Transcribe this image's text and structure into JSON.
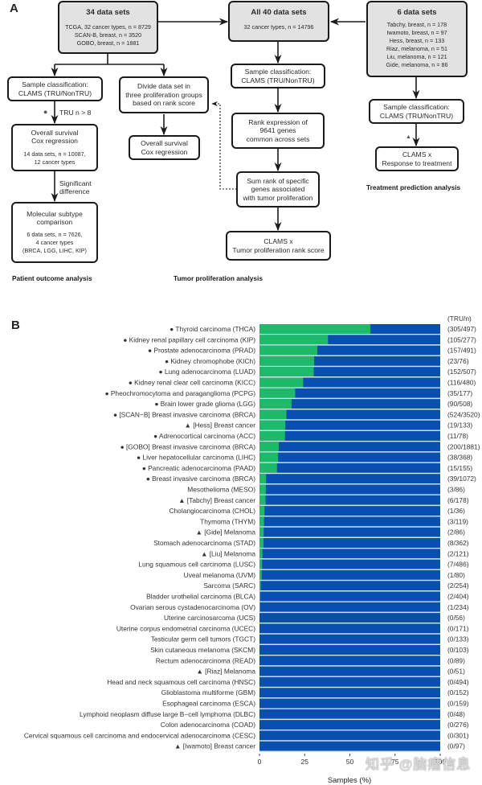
{
  "panel_a": {
    "label": "A",
    "boxes": {
      "ds34": {
        "head": "34 data sets",
        "lines": [
          "TCGA, 32 cancer types, n = 8729",
          "SCAN-B, breast, n = 3520",
          "GOBO, breast, n = 1881"
        ]
      },
      "all40": {
        "head": "All 40 data sets",
        "lines": [
          "32 cancer types, n = 14796"
        ]
      },
      "ds6": {
        "head": "6 data sets",
        "lines": [
          "Tabchy, breast, n = 178",
          "Iwamoto, breast, n = 97",
          "Hess, breast, n = 133",
          "Riaz, melanoma, n = 51",
          "Liu, melanoma, n = 121",
          "Gide, melanoma, n = 86"
        ]
      },
      "classify_left": [
        "Sample classification:",
        "CLAMS (TRU/NonTRU)"
      ],
      "divide": [
        "Divide data set in",
        "three proliferation groups",
        "based on rank score"
      ],
      "survival_left": {
        "lines": [
          "Overall survival",
          "Cox regression"
        ],
        "sub": [
          "14 data sets, n = 10087,",
          "12 cancer types"
        ]
      },
      "survival_mid": [
        "Overall survival",
        "Cox regression"
      ],
      "subtype": {
        "lines": [
          "Molecular subtype",
          "comparison"
        ],
        "sub": [
          "6 data sets, n = 7626,",
          "4 cancer types",
          "(BRCA, LGG, LIHC, KIP)"
        ]
      },
      "classify_mid": [
        "Sample classification:",
        "CLAMS (TRU/NonTRU)"
      ],
      "rank": [
        "Rank expression of",
        "9641 genes",
        "common across sets"
      ],
      "sumrank": [
        "Sum rank of specific",
        "genes associated",
        "with tumor proliferation"
      ],
      "clams_prolif": [
        "CLAMS x",
        "Tumor proliferation rank score"
      ],
      "classify_right": [
        "Sample classification:",
        "CLAMS (TRU/NonTRU)"
      ],
      "clams_response": [
        "CLAMS x",
        "Response to treatment"
      ]
    },
    "annotations": {
      "tru_filter": "TRU n > 8",
      "significant": [
        "Significant",
        "difference"
      ]
    },
    "section_titles": {
      "patient": "Patient outcome analysis",
      "tumor": "Tumor proliferation analysis",
      "treatment": "Treatment prediction analysis"
    },
    "symbols": {
      "circle": "●",
      "triangle": "▲"
    }
  },
  "colors": {
    "tru": "#1dba6a",
    "nontru": "#0a4fb0",
    "separator": "#cfe6f2",
    "box_fill": "#e2e2e2",
    "border": "#1a1a1a"
  },
  "watermark": "知乎 @脑瘤信息",
  "chart_data": {
    "type": "bar",
    "stacked": true,
    "orientation": "horizontal",
    "panel_label": "B",
    "xlabel": "Samples (%)",
    "xlim": [
      0,
      100
    ],
    "xticks": [
      0,
      25,
      50,
      75,
      100
    ],
    "xtick_labels": [
      "0",
      "25",
      "50",
      "75",
      "100"
    ],
    "right_header": "(TRU/n)",
    "legend": "none",
    "series_names": [
      "TRU",
      "NonTRU"
    ],
    "categories": [
      {
        "label": "Thyroid carcinoma (THCA)",
        "marker": "circle",
        "tru": 305,
        "n": 497
      },
      {
        "label": "Kidney renal papillary cell carcinoma (KIP)",
        "marker": "circle",
        "tru": 105,
        "n": 277
      },
      {
        "label": "Prostate adenocarcinoma (PRAD)",
        "marker": "circle",
        "tru": 157,
        "n": 491
      },
      {
        "label": "Kidney chromophobe (KICh)",
        "marker": "circle",
        "tru": 23,
        "n": 76
      },
      {
        "label": "Lung adenocarcinoma (LUAD)",
        "marker": "circle",
        "tru": 152,
        "n": 507
      },
      {
        "label": "Kidney renal clear cell carcinoma (KICC)",
        "marker": "circle",
        "tru": 116,
        "n": 480
      },
      {
        "label": "Pheochromocytoma and paraganglioma (PCPG)",
        "marker": "circle",
        "tru": 35,
        "n": 177
      },
      {
        "label": "Brain lower grade glioma (LGG)",
        "marker": "circle",
        "tru": 90,
        "n": 508
      },
      {
        "label": "[SCAN−B] Breast invasive carcinoma (BRCA)",
        "marker": "circle",
        "tru": 524,
        "n": 3520
      },
      {
        "label": "[Hess] Breast cancer",
        "marker": "triangle",
        "tru": 19,
        "n": 133
      },
      {
        "label": "Adrenocortical carcinoma (ACC)",
        "marker": "circle",
        "tru": 11,
        "n": 78
      },
      {
        "label": "[GOBO] Breast invasive carcinoma (BRCA)",
        "marker": "circle",
        "tru": 200,
        "n": 1881
      },
      {
        "label": "Liver hepatocellular carcinoma (LIHC)",
        "marker": "circle",
        "tru": 38,
        "n": 368
      },
      {
        "label": "Pancreatic adenocarcinoma (PAAD)",
        "marker": "circle",
        "tru": 15,
        "n": 155
      },
      {
        "label": "Breast invasive carcinoma (BRCA)",
        "marker": "circle",
        "tru": 39,
        "n": 1072
      },
      {
        "label": "Mesothelioma (MESO)",
        "marker": "",
        "tru": 3,
        "n": 86
      },
      {
        "label": "[Tabchy] Breast cancer",
        "marker": "triangle",
        "tru": 6,
        "n": 178
      },
      {
        "label": "Cholangiocarcinoma (CHOL)",
        "marker": "",
        "tru": 1,
        "n": 36
      },
      {
        "label": "Thymoma (THYM)",
        "marker": "",
        "tru": 3,
        "n": 119
      },
      {
        "label": "[Gide] Melanoma",
        "marker": "triangle",
        "tru": 2,
        "n": 86
      },
      {
        "label": "Stomach adenocarcinoma (STAD)",
        "marker": "",
        "tru": 8,
        "n": 362
      },
      {
        "label": "[Liu] Melanoma",
        "marker": "triangle",
        "tru": 2,
        "n": 121
      },
      {
        "label": "Lung squamous cell carcinoma (LUSC)",
        "marker": "",
        "tru": 7,
        "n": 486
      },
      {
        "label": "Uveal melanoma (UVM)",
        "marker": "",
        "tru": 1,
        "n": 80
      },
      {
        "label": "Sarcoma (SARC)",
        "marker": "",
        "tru": 2,
        "n": 254
      },
      {
        "label": "Bladder urothelial carcinoma (BLCA)",
        "marker": "",
        "tru": 2,
        "n": 404
      },
      {
        "label": "Ovarian serous cystadenocarcinoma (OV)",
        "marker": "",
        "tru": 1,
        "n": 234
      },
      {
        "label": "Uterine carcinosarcoma (UCS)",
        "marker": "",
        "tru": 0,
        "n": 56
      },
      {
        "label": "Uterine corpus endometrial carcinoma (UCEC)",
        "marker": "",
        "tru": 0,
        "n": 171
      },
      {
        "label": "Testicular germ cell tumors (TGCT)",
        "marker": "",
        "tru": 0,
        "n": 133
      },
      {
        "label": "Skin cutaneous melanoma (SKCM)",
        "marker": "",
        "tru": 0,
        "n": 103
      },
      {
        "label": "Rectum adenocarcinoma (READ)",
        "marker": "",
        "tru": 0,
        "n": 89
      },
      {
        "label": "[Riaz] Melanoma",
        "marker": "triangle",
        "tru": 0,
        "n": 51
      },
      {
        "label": "Head and neck squamous cell carcinoma (HNSC)",
        "marker": "",
        "tru": 0,
        "n": 494
      },
      {
        "label": "Glioblastoma multiforme (GBM)",
        "marker": "",
        "tru": 0,
        "n": 152
      },
      {
        "label": "Esophageal carcinoma (ESCA)",
        "marker": "",
        "tru": 0,
        "n": 159
      },
      {
        "label": "Lymphoid neoplasm diffuse large B−cell lymphoma (DLBC)",
        "marker": "",
        "tru": 0,
        "n": 48
      },
      {
        "label": "Colon adenocarcinoma (COAD)",
        "marker": "",
        "tru": 0,
        "n": 276
      },
      {
        "label": "Cervical squamous cell carcinoma and endocervical adenocarcinoma (CESC)",
        "marker": "",
        "tru": 0,
        "n": 301
      },
      {
        "label": "[Iwamoto] Breast cancer",
        "marker": "triangle",
        "tru": 0,
        "n": 97
      }
    ]
  }
}
